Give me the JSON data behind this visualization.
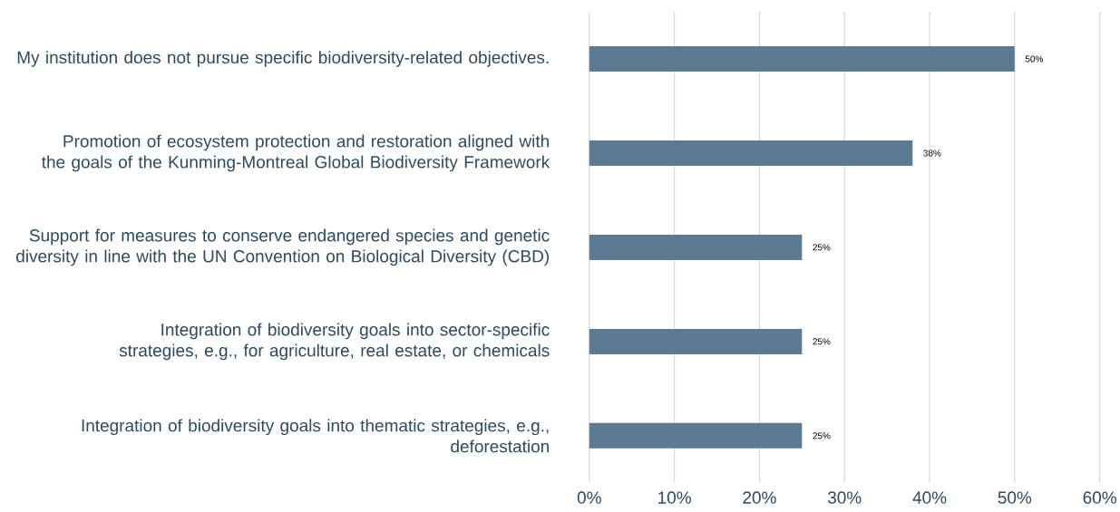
{
  "chart_data": {
    "type": "bar",
    "orientation": "horizontal",
    "categories": [
      "My institution does not pursue specific biodiversity-related objectives.",
      "Promotion of ecosystem protection and restoration aligned with the goals of the Kunming-Montreal Global Biodiversity Framework",
      "Support for measures to conserve endangered species and genetic diversity in line with the UN Convention on Biological Diversity (CBD)",
      "Integration of biodiversity goals into sector-specific strategies, e.g., for agriculture, real estate, or chemicals",
      "Integration of biodiversity goals into thematic strategies, e.g., deforestation"
    ],
    "values": [
      50,
      38,
      25,
      25,
      25
    ],
    "value_labels": [
      "50%",
      "38%",
      "25%",
      "25%",
      "25%"
    ],
    "color": "#5d7a93",
    "xlim": [
      0,
      60
    ],
    "xticks": [
      {
        "value": 0,
        "label": "0%"
      },
      {
        "value": 10,
        "label": "10%"
      },
      {
        "value": 20,
        "label": "20%"
      },
      {
        "value": 30,
        "label": "30%"
      },
      {
        "value": 40,
        "label": "40%"
      },
      {
        "value": 50,
        "label": "50%"
      },
      {
        "value": 60,
        "label": "60%"
      }
    ],
    "grid": "x"
  }
}
